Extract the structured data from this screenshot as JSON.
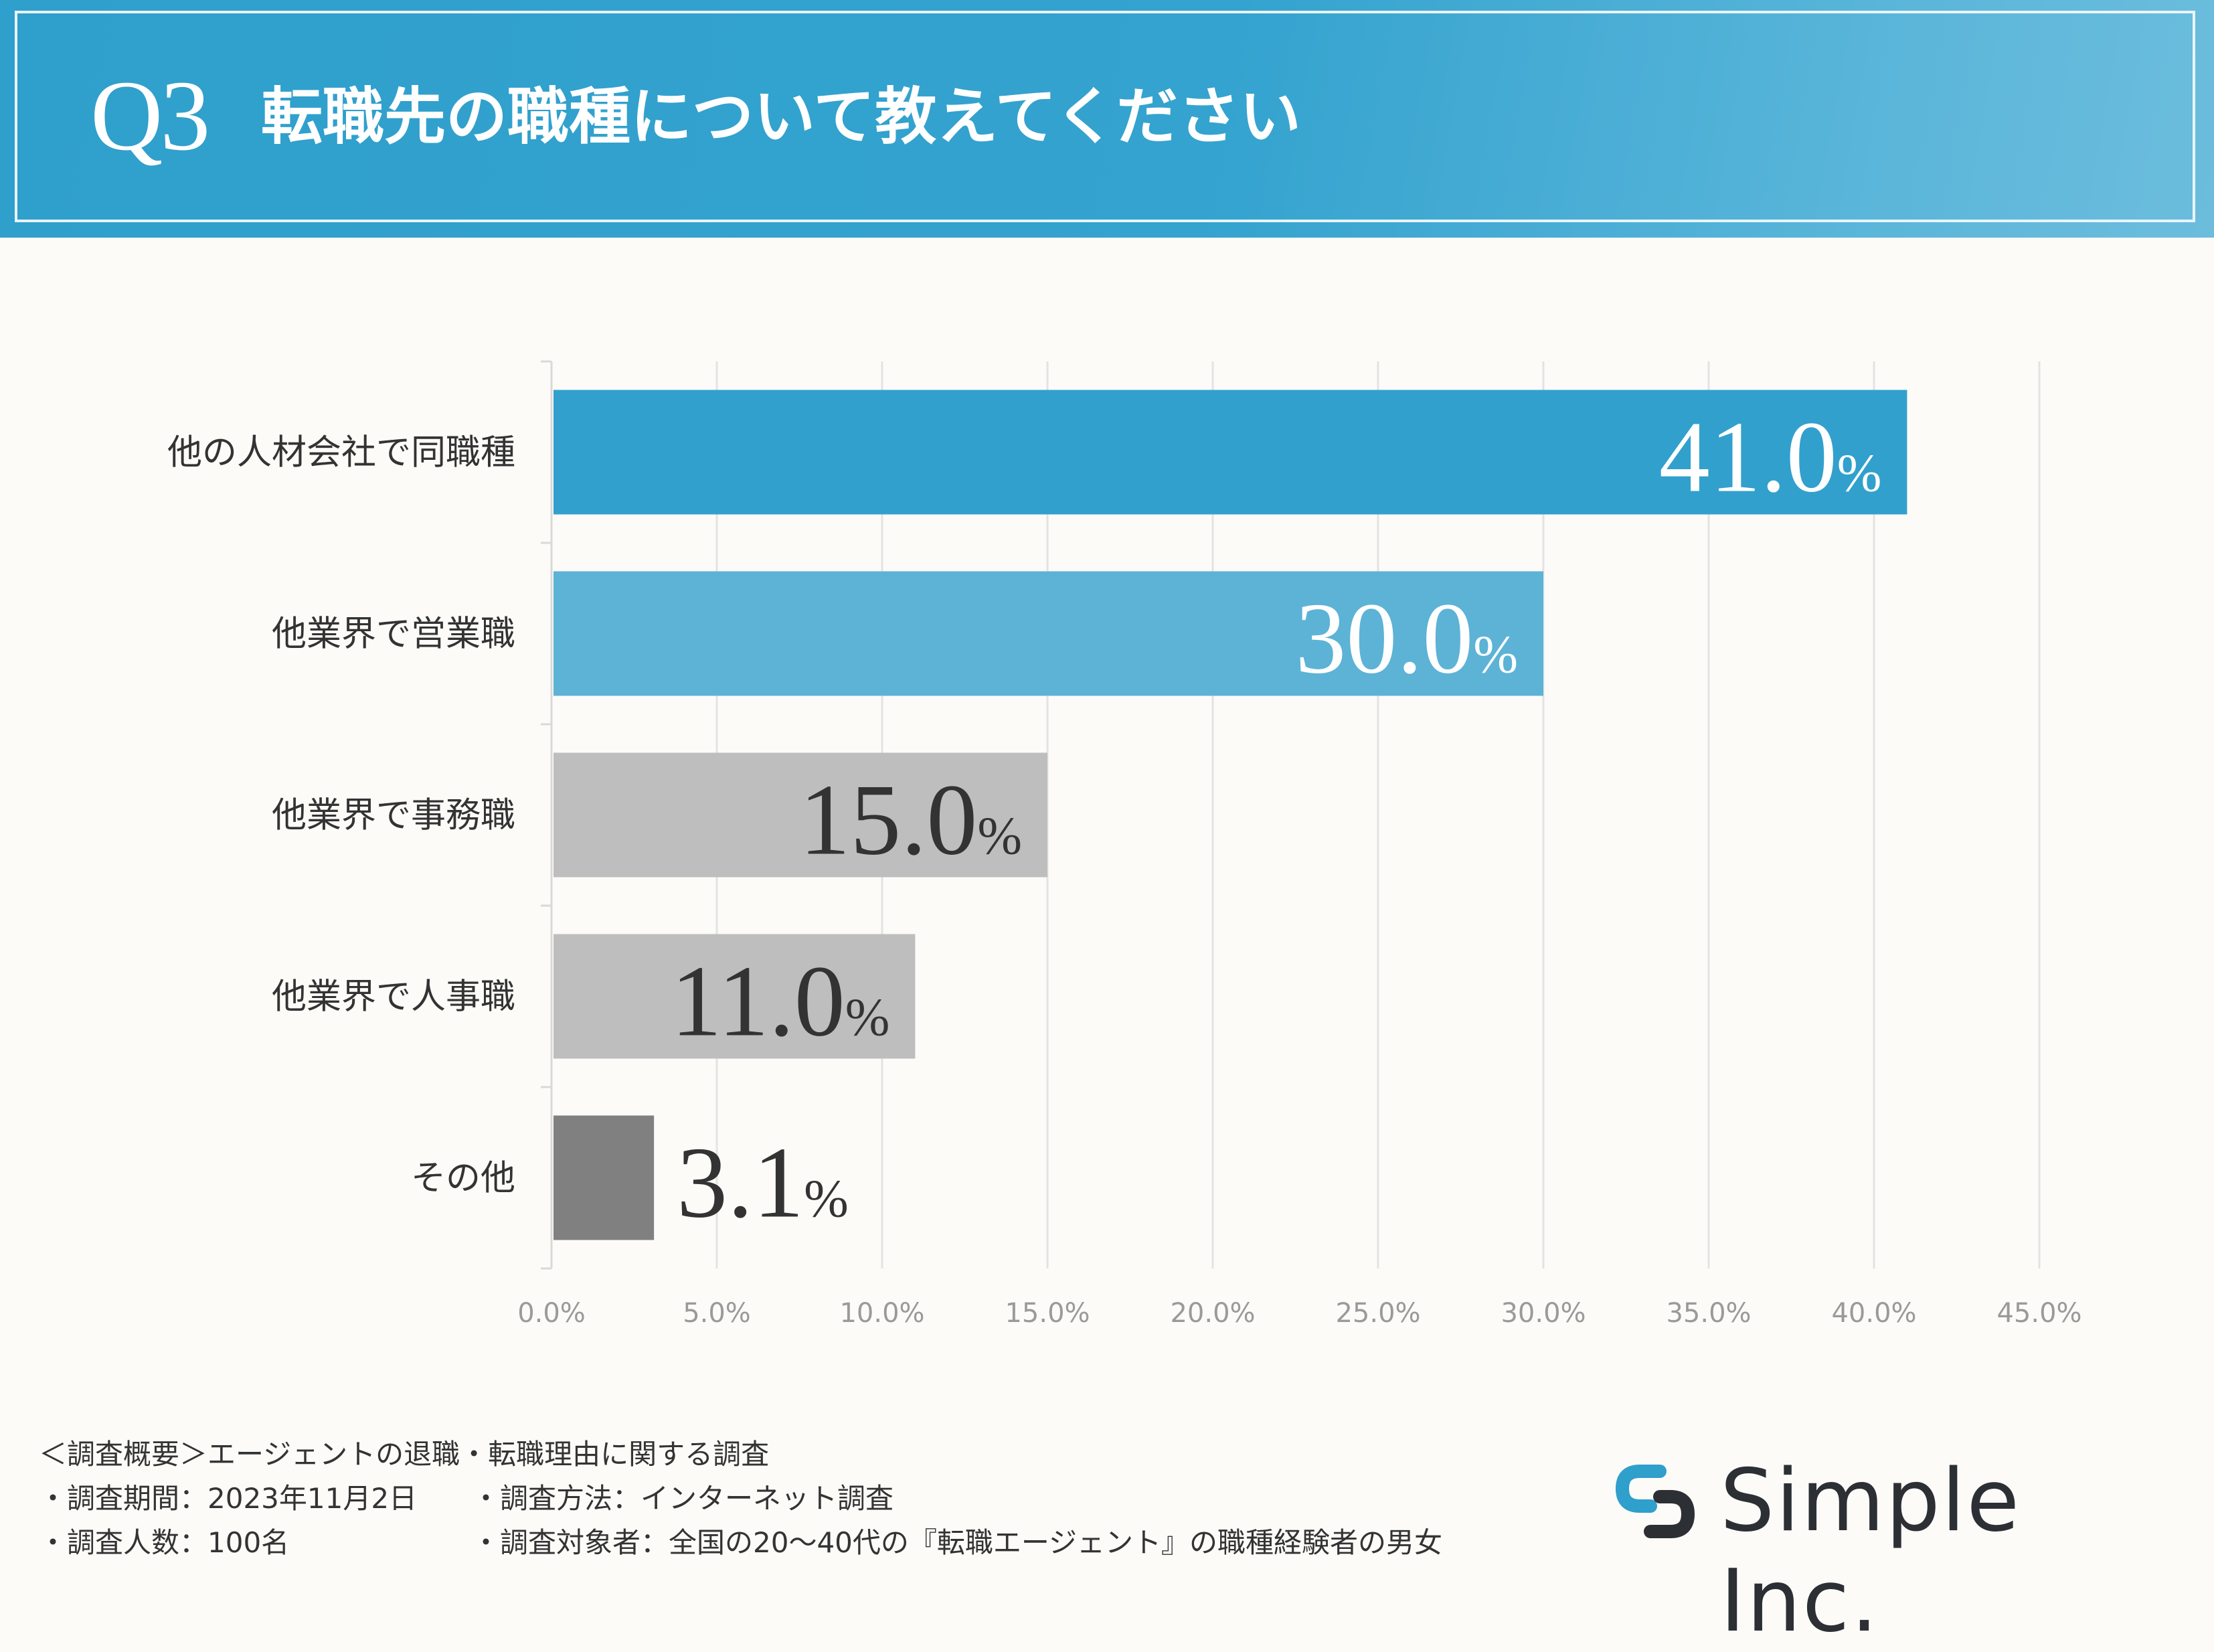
{
  "header": {
    "q_label": "Q3",
    "title": "転職先の職種について教えてください"
  },
  "chart_data": {
    "type": "bar",
    "orientation": "horizontal",
    "categories": [
      "他の人材会社で同職種",
      "他業界で営業職",
      "他業界で事務職",
      "他業界で人事職",
      "その他"
    ],
    "values": [
      41.0,
      30.0,
      15.0,
      11.0,
      3.1
    ],
    "value_labels": [
      {
        "num": "41.0",
        "pct": "%"
      },
      {
        "num": "30.0",
        "pct": "%"
      },
      {
        "num": "15.0",
        "pct": "%"
      },
      {
        "num": "11.0",
        "pct": "%"
      },
      {
        "num": "3.1",
        "pct": "%"
      }
    ],
    "bar_colors": [
      "#32a0cd",
      "#5cb3d6",
      "#bebebe",
      "#bebebe",
      "#808080"
    ],
    "label_colors": [
      "#ffffff",
      "#ffffff",
      "#333333",
      "#333333",
      "#333333"
    ],
    "xlim": [
      0,
      45
    ],
    "ticks": [
      0,
      5,
      10,
      15,
      20,
      25,
      30,
      35,
      40,
      45
    ],
    "tick_labels": [
      "0.0%",
      "5.0%",
      "10.0%",
      "15.0%",
      "20.0%",
      "25.0%",
      "30.0%",
      "35.0%",
      "40.0%",
      "45.0%"
    ],
    "grid": true,
    "title": "",
    "xlabel": "",
    "ylabel": ""
  },
  "footer": {
    "line1": "＜調査概要＞エージェントの退職・転職理由に関する調査",
    "line2a": "・調査期間：2023年11月2日",
    "line2b": "・調査方法：インターネット調査",
    "line3a": "・調査人数：100名",
    "line3b": "・調査対象者：全国の20～40代の『転職エージェント』の職種経験者の男女"
  },
  "logo": {
    "text": "Simple Inc.",
    "icon": "link-chain-icon",
    "icon_colors": [
      "#2f9fcc",
      "#2c2f34"
    ]
  }
}
